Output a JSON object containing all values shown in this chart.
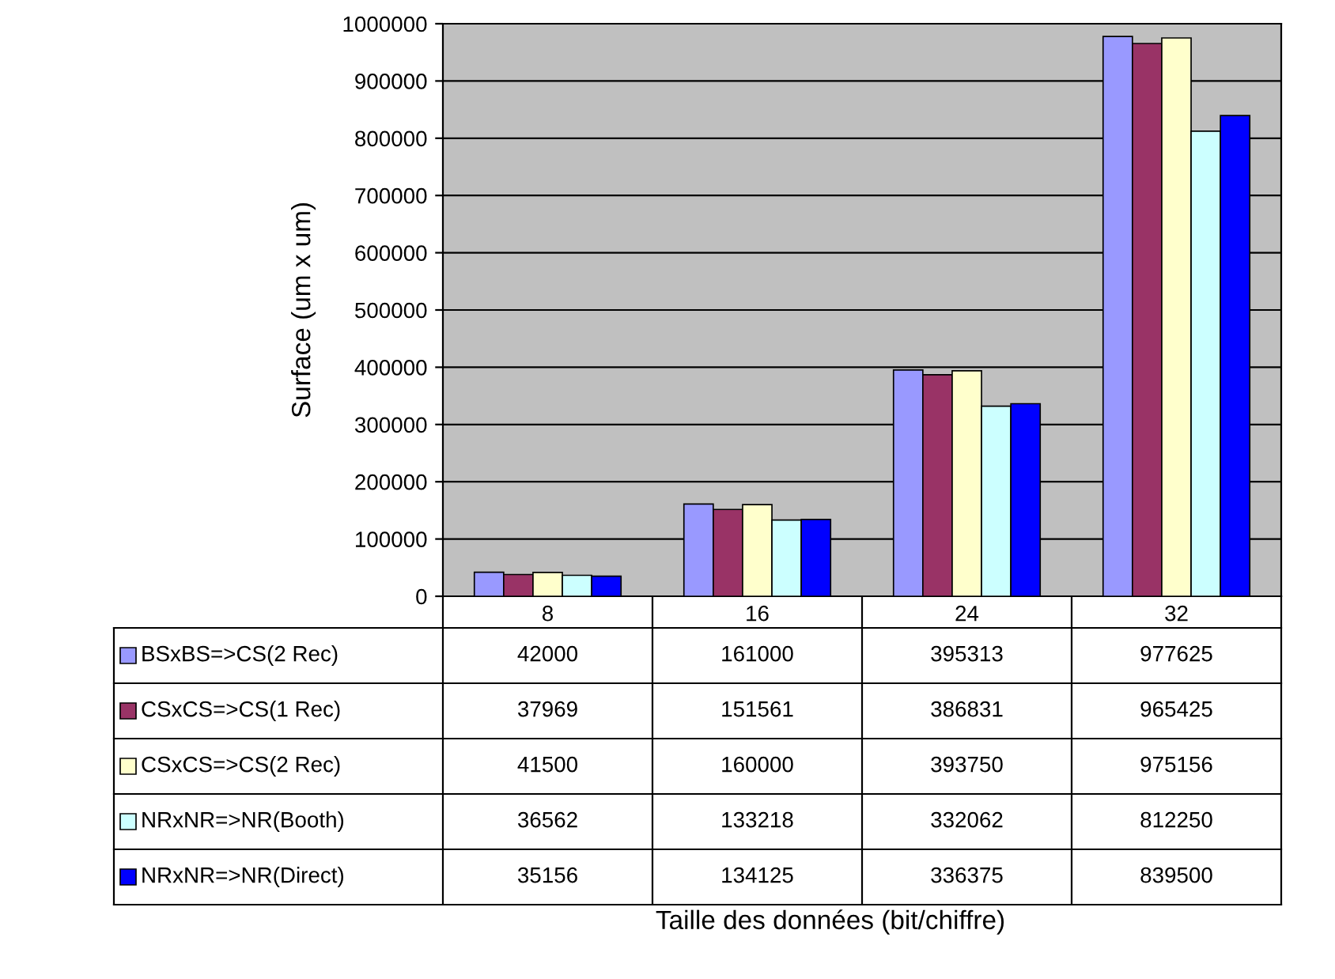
{
  "chart_data": {
    "type": "bar",
    "annotations": [
      "Taille des données (bit/chiffre)"
    ],
    "ylabel": "Surface (um x um)",
    "categories": [
      "8",
      "16",
      "24",
      "32"
    ],
    "series": [
      {
        "name": "BSxBS=>CS(2 Rec)",
        "color": "#9999ff",
        "values": [
          42000,
          161000,
          395313,
          977625
        ]
      },
      {
        "name": "CSxCS=>CS(1 Rec)",
        "color": "#993366",
        "values": [
          37969,
          151561,
          386831,
          965425
        ]
      },
      {
        "name": "CSxCS=>CS(2 Rec)",
        "color": "#ffffcc",
        "values": [
          41500,
          160000,
          393750,
          975156
        ]
      },
      {
        "name": "NRxNR=>NR(Booth)",
        "color": "#ccffff",
        "values": [
          36562,
          133218,
          332062,
          812250
        ]
      },
      {
        "name": "NRxNR=>NR(Direct)",
        "color": "#0000ff",
        "values": [
          35156,
          134125,
          336375,
          839500
        ]
      }
    ],
    "ylim": [
      0,
      1000000
    ],
    "yticks": [
      0,
      100000,
      200000,
      300000,
      400000,
      500000,
      600000,
      700000,
      800000,
      900000,
      1000000
    ],
    "grid": "y",
    "data_labels": true,
    "legend": "bottom left"
  }
}
